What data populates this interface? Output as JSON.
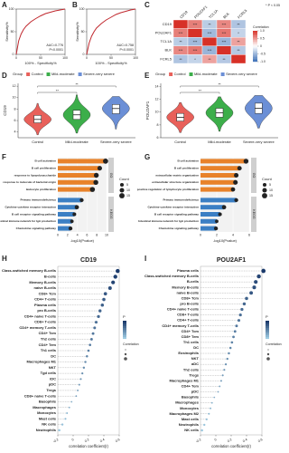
{
  "chart_data": [
    {
      "panel": "A",
      "type": "line",
      "xlabel": "100% - Specificity%",
      "ylabel": "Sensitivity%",
      "x": [
        0,
        5,
        10,
        15,
        20,
        30,
        40,
        50,
        60,
        70,
        80,
        90,
        100
      ],
      "series": [
        {
          "color": "#c0282e",
          "values": [
            0,
            30,
            45,
            55,
            62,
            72,
            79,
            85,
            90,
            93,
            96,
            98,
            100
          ]
        }
      ],
      "xlim": [
        0,
        100
      ],
      "ylim": [
        0,
        100
      ],
      "xticks": [
        0,
        50,
        100
      ],
      "yticks": [
        0,
        50,
        100
      ],
      "annotations": [
        "AUC=0.776",
        "P<0.0001"
      ]
    },
    {
      "panel": "B",
      "type": "line",
      "xlabel": "100% - Specificity%",
      "ylabel": "Sensitivity%",
      "x": [
        0,
        5,
        10,
        15,
        20,
        30,
        40,
        50,
        60,
        70,
        80,
        90,
        100
      ],
      "series": [
        {
          "color": "#c0282e",
          "values": [
            0,
            25,
            40,
            50,
            58,
            68,
            76,
            82,
            88,
            92,
            95,
            98,
            100
          ]
        }
      ],
      "xlim": [
        0,
        100
      ],
      "ylim": [
        0,
        100
      ],
      "xticks": [
        0,
        50,
        100
      ],
      "yticks": [
        0,
        50,
        100
      ],
      "annotations": [
        "AUC=0.758",
        "P<0.0001"
      ]
    },
    {
      "panel": "C",
      "type": "heatmap",
      "labels": [
        "CD19",
        "POU2AF1",
        "TCL1A",
        "BLK",
        "FCRL5"
      ],
      "values": [
        [
          1,
          0.62,
          -0.35,
          0.58,
          -0.41
        ],
        [
          0.62,
          1,
          -0.48,
          0.66,
          -0.3
        ],
        [
          -0.35,
          -0.48,
          1,
          -0.52,
          0.45
        ],
        [
          0.58,
          0.66,
          -0.52,
          1,
          -0.38
        ],
        [
          -0.41,
          -0.3,
          0.45,
          -0.38,
          1
        ]
      ],
      "significance": [
        [
          null,
          "***",
          "**",
          "***",
          "**"
        ],
        [
          "***",
          null,
          "***",
          "***",
          "*"
        ],
        [
          "**",
          "***",
          null,
          "***",
          "**"
        ],
        [
          "***",
          "***",
          "***",
          null,
          "**"
        ],
        [
          "**",
          "*",
          "**",
          "**",
          null
        ]
      ],
      "colors": [
        "#3b6fb6",
        "#ffffff",
        "#d73027"
      ],
      "colorbar_title": "Correlation",
      "note": "* P < 0.05",
      "colorbar_ticks": [
        {
          "value": 1,
          "label": "1.0"
        },
        0.5,
        0,
        -0.5,
        {
          "value": -1,
          "label": "-1.0"
        }
      ]
    },
    {
      "panel": "D",
      "type": "violin",
      "legend_title": "Group",
      "ylabel": "CD19",
      "categories": [
        "Control",
        "Mild-moderate",
        "Severe-very severe"
      ],
      "colors": [
        "#e8605a",
        "#3cae4a",
        "#6b8fd6"
      ],
      "boxes": [
        {
          "min": 3.5,
          "q1": 5.6,
          "median": 6.2,
          "q3": 6.9,
          "max": 9.0
        },
        {
          "min": 3.8,
          "q1": 6.2,
          "median": 7.0,
          "q3": 7.8,
          "max": 10.5
        },
        {
          "min": 4.5,
          "q1": 7.2,
          "median": 8.1,
          "q3": 8.8,
          "max": 10.2
        }
      ],
      "ylim": [
        3,
        12.5
      ],
      "yticks": [
        4,
        6,
        8,
        10,
        12
      ],
      "significance": [
        "**",
        "**"
      ]
    },
    {
      "panel": "E",
      "type": "violin",
      "legend_title": "Group",
      "ylabel": "POU2AF1",
      "categories": [
        "Control",
        "Mild-moderate",
        "Severe-very severe"
      ],
      "colors": [
        "#e8605a",
        "#3cae4a",
        "#6b8fd6"
      ],
      "boxes": [
        {
          "min": 6.8,
          "q1": 8.6,
          "median": 9.2,
          "q3": 9.8,
          "max": 11.5
        },
        {
          "min": 7.0,
          "q1": 9.2,
          "median": 9.9,
          "q3": 10.6,
          "max": 12.4
        },
        {
          "min": 7.5,
          "q1": 9.8,
          "median": 10.6,
          "q3": 11.4,
          "max": 12.6
        }
      ],
      "ylim": [
        6,
        14.5
      ],
      "yticks": [
        6,
        8,
        10,
        12,
        14
      ],
      "significance": [
        "**",
        "**"
      ]
    },
    {
      "panel": "F",
      "type": "bar",
      "xlabel": "-log10(Pvalue)",
      "xlim": [
        0,
        10
      ],
      "xticks": [
        0,
        2,
        4,
        6,
        8,
        10
      ],
      "size_legend": {
        "title": "Count",
        "values": [
          5,
          10,
          15
        ]
      },
      "series": [
        {
          "name": "GO",
          "color": "#e8822a",
          "categories": [
            "B cell activation",
            "B cell proliferation",
            "response to lipopolysaccharide",
            "response to molecule of bacterial origin",
            "leukocyte proliferation"
          ],
          "values": [
            9.8,
            8.6,
            7.9,
            7.8,
            7.1
          ],
          "counts": [
            14,
            10,
            12,
            12,
            13
          ]
        },
        {
          "name": "KEGG",
          "color": "#3b7fc4",
          "categories": [
            "Primary immunodeficiency",
            "Cytokine-cytokine receptor interaction",
            "B cell receptor signaling pathway",
            "Intestinal immune network for IgA production",
            "Chemokine signaling pathway"
          ],
          "values": [
            4.9,
            3.9,
            3.4,
            2.9,
            2.6
          ],
          "counts": [
            6,
            8,
            5,
            4,
            6
          ]
        }
      ]
    },
    {
      "panel": "G",
      "type": "bar",
      "xlabel": "-log10(Pvalue)",
      "xlim": [
        0,
        6
      ],
      "xticks": [
        0,
        2,
        4,
        6
      ],
      "size_legend": {
        "title": "Count",
        "values": [
          5,
          10,
          15
        ]
      },
      "series": [
        {
          "name": "GO",
          "color": "#e8822a",
          "categories": [
            "B cell activation",
            "B cell proliferation",
            "extracellular matrix organization",
            "extracellular structure organization",
            "positive regulation of lymphocyte proliferation"
          ],
          "values": [
            5.6,
            4.8,
            4.4,
            4.3,
            4.0
          ],
          "counts": [
            12,
            9,
            10,
            10,
            8
          ]
        },
        {
          "name": "KEGG",
          "color": "#3b7fc4",
          "categories": [
            "Primary immunodeficiency",
            "Cytokine-cytokine receptor interaction",
            "B cell receptor signaling pathway",
            "Intestinal immune network for IgA production",
            "Chemokine signaling pathway"
          ],
          "values": [
            4.4,
            2.9,
            2.4,
            2.0,
            1.9
          ],
          "counts": [
            6,
            8,
            5,
            4,
            6
          ]
        }
      ]
    },
    {
      "panel": "H",
      "type": "lollipop",
      "title": "CD19",
      "xlabel": "correlation coefficient(r)",
      "color_title": "P",
      "size_title": "Correlation",
      "categories": [
        "Class-switched memory B-cells",
        "B-cells",
        "Memory B-cells",
        "naive B-cells",
        "CD8+ Tcm",
        "CD4+ T-cells",
        "Plasma cells",
        "pro B-cells",
        "CD4+ naive T-cells",
        "CD8+ T-cells",
        "CD4+ memory T-cells",
        "CD4+ Tcm",
        "Th2 cells",
        "CD4+ Tem",
        "Th1 cells",
        "DC",
        "Macrophages M1",
        "NKT",
        "Tgd cells",
        "iDC",
        "pDC",
        "Tregs",
        "CD8+ naive T-cells",
        "Basophils",
        "Macrophages",
        "Monocytes",
        "Mast cells",
        "NK cells",
        "Neutrophils"
      ],
      "values": [
        0.58,
        0.55,
        0.52,
        0.48,
        0.42,
        0.4,
        0.38,
        0.35,
        0.33,
        0.3,
        0.28,
        0.26,
        0.24,
        0.22,
        0.2,
        0.18,
        0.16,
        0.14,
        0.12,
        0.1,
        0.08,
        0.06,
        0.04,
        -0.02,
        -0.05,
        -0.08,
        -0.1,
        -0.14,
        -0.18
      ],
      "color": "#1b3a6b",
      "xlim": [
        -0.2,
        0.6
      ],
      "xticks": [
        -0.2,
        0,
        0.2,
        0.4,
        0.6
      ]
    },
    {
      "panel": "I",
      "type": "lollipop",
      "title": "POU2AF1",
      "xlabel": "correlation coefficient(r)",
      "color_title": "P",
      "size_title": "Correlation",
      "categories": [
        "Plasma cells",
        "Class-switched memory B-cells",
        "B-cells",
        "Memory B-cells",
        "naive B-cells",
        "CD8+ Tcm",
        "pro B-cells",
        "CD4+ naive T-cells",
        "CD8+ T-cells",
        "CD4+ T-cells",
        "CD4+ memory T-cells",
        "CD4+ Tcm",
        "CD8+ Tem",
        "Th1 cells",
        "DC",
        "Eosinophils",
        "NKT",
        "aDC",
        "Th2 cells",
        "Tregs",
        "Macrophages M1",
        "CD4+ Tem",
        "pDC",
        "Basophils",
        "Macrophages",
        "Monocytes",
        "Macrophages M2",
        "Mast cells",
        "Neutrophils",
        "NK cells"
      ],
      "values": [
        0.62,
        0.56,
        0.52,
        0.5,
        0.46,
        0.4,
        0.37,
        0.34,
        0.32,
        0.3,
        0.27,
        0.25,
        0.23,
        0.21,
        0.19,
        0.17,
        0.15,
        0.13,
        0.11,
        0.09,
        0.07,
        0.05,
        0.03,
        -0.02,
        -0.05,
        -0.07,
        -0.09,
        -0.12,
        -0.15,
        -0.18
      ],
      "color": "#1b3a6b",
      "xlim": [
        -0.2,
        0.6
      ],
      "xticks": [
        -0.2,
        0,
        0.2,
        0.4,
        0.6
      ]
    }
  ]
}
